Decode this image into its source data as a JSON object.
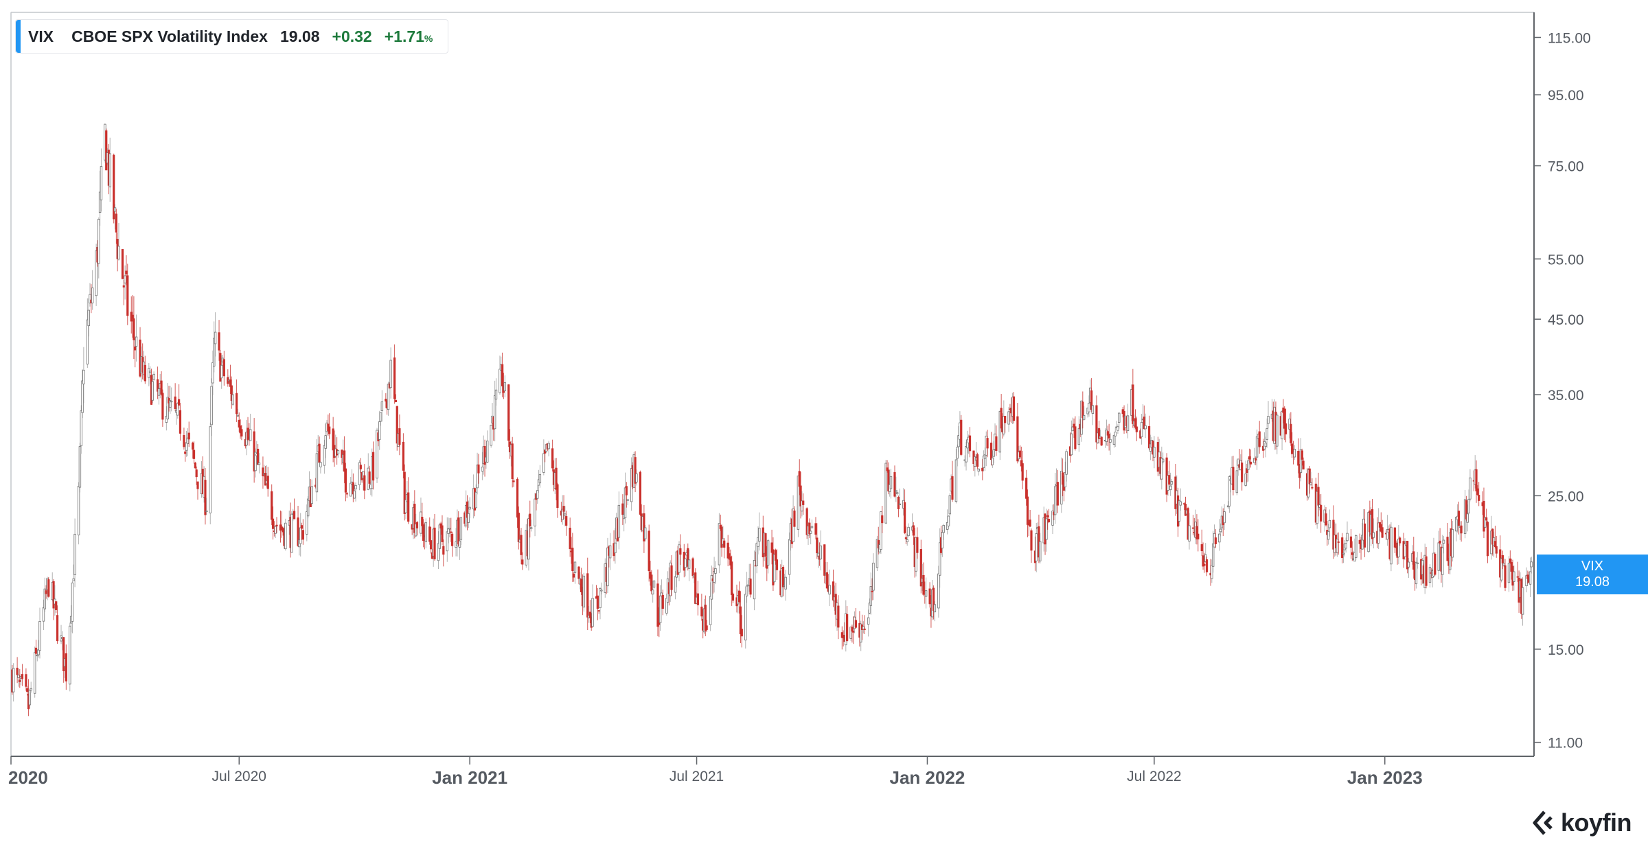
{
  "legend": {
    "ticker": "VIX",
    "name": "CBOE SPX Volatility Index",
    "last": "19.08",
    "change": "+0.32",
    "change_pct": "+1.71",
    "pct_sign": "%"
  },
  "price_tag": {
    "ticker": "VIX",
    "value": "19.08",
    "color": "#2196f3"
  },
  "logo": {
    "text": "koyfin",
    "icon": "koyfin-chevron-icon"
  },
  "colors": {
    "up": "#9e9e9e",
    "down": "#c9302c",
    "accent": "#2196f3"
  },
  "chart_data": {
    "type": "candlestick",
    "title": "",
    "xlabel": "",
    "ylabel": "",
    "y_scale": "log",
    "ylim": [
      10.5,
      125
    ],
    "y_ticks": [
      "115.00",
      "95.00",
      "75.00",
      "55.00",
      "45.00",
      "35.00",
      "25.00",
      "15.00",
      "11.00"
    ],
    "x_range": [
      "2020-01-01",
      "2023-04-30"
    ],
    "x_ticks": [
      {
        "date": "2020-01-01",
        "label": "2020",
        "major": true
      },
      {
        "date": "2020-07-01",
        "label": "Jul 2020",
        "major": false
      },
      {
        "date": "2021-01-01",
        "label": "Jan 2021",
        "major": true
      },
      {
        "date": "2021-07-01",
        "label": "Jul 2021",
        "major": false
      },
      {
        "date": "2022-01-01",
        "label": "Jan 2022",
        "major": true
      },
      {
        "date": "2022-07-01",
        "label": "Jul 2022",
        "major": false
      },
      {
        "date": "2023-01-01",
        "label": "Jan 2023",
        "major": true
      }
    ],
    "grid": false,
    "series": [
      {
        "type": "close_trend",
        "x": [
          "2020-01-02",
          "2020-01-15",
          "2020-01-31",
          "2020-02-14",
          "2020-02-24",
          "2020-02-28",
          "2020-03-09",
          "2020-03-16",
          "2020-03-24",
          "2020-04-03",
          "2020-04-14",
          "2020-04-30",
          "2020-05-15",
          "2020-06-05",
          "2020-06-11",
          "2020-06-26",
          "2020-07-15",
          "2020-08-01",
          "2020-08-20",
          "2020-09-08",
          "2020-09-25",
          "2020-10-15",
          "2020-10-30",
          "2020-11-10",
          "2020-12-01",
          "2020-12-20",
          "2021-01-05",
          "2021-01-27",
          "2021-02-12",
          "2021-03-04",
          "2021-03-25",
          "2021-04-10",
          "2021-05-12",
          "2021-05-31",
          "2021-06-18",
          "2021-07-09",
          "2021-07-19",
          "2021-08-06",
          "2021-08-19",
          "2021-09-08",
          "2021-09-20",
          "2021-10-04",
          "2021-10-26",
          "2021-11-15",
          "2021-11-30",
          "2021-12-20",
          "2022-01-04",
          "2022-01-27",
          "2022-02-10",
          "2022-02-24",
          "2022-03-08",
          "2022-03-25",
          "2022-04-05",
          "2022-05-09",
          "2022-05-20",
          "2022-06-13",
          "2022-06-30",
          "2022-07-20",
          "2022-08-15",
          "2022-09-01",
          "2022-09-30",
          "2022-10-13",
          "2022-11-10",
          "2022-11-30",
          "2022-12-20",
          "2023-01-10",
          "2023-02-01",
          "2023-02-24",
          "2023-03-13",
          "2023-03-24",
          "2023-04-10",
          "2023-04-20",
          "2023-04-28"
        ],
        "close": [
          13.8,
          12.4,
          18.8,
          14.0,
          25.0,
          40.1,
          54.0,
          82.7,
          61.7,
          46.8,
          37.8,
          34.2,
          31.9,
          24.5,
          40.8,
          34.7,
          27.8,
          22.5,
          22.1,
          31.5,
          26.4,
          26.9,
          38.0,
          24.8,
          21.2,
          22.0,
          25.3,
          37.2,
          19.9,
          29.0,
          19.8,
          16.7,
          27.6,
          16.8,
          20.7,
          16.2,
          22.5,
          16.2,
          21.7,
          18.4,
          25.7,
          21.1,
          16.0,
          16.5,
          27.2,
          21.6,
          16.9,
          30.5,
          27.4,
          30.3,
          35.1,
          20.8,
          22.1,
          34.8,
          29.4,
          34.0,
          28.7,
          23.9,
          19.9,
          26.0,
          31.6,
          31.9,
          23.5,
          20.6,
          22.6,
          21.0,
          19.4,
          21.1,
          26.5,
          21.7,
          19.0,
          17.9,
          19.1
        ]
      }
    ]
  }
}
